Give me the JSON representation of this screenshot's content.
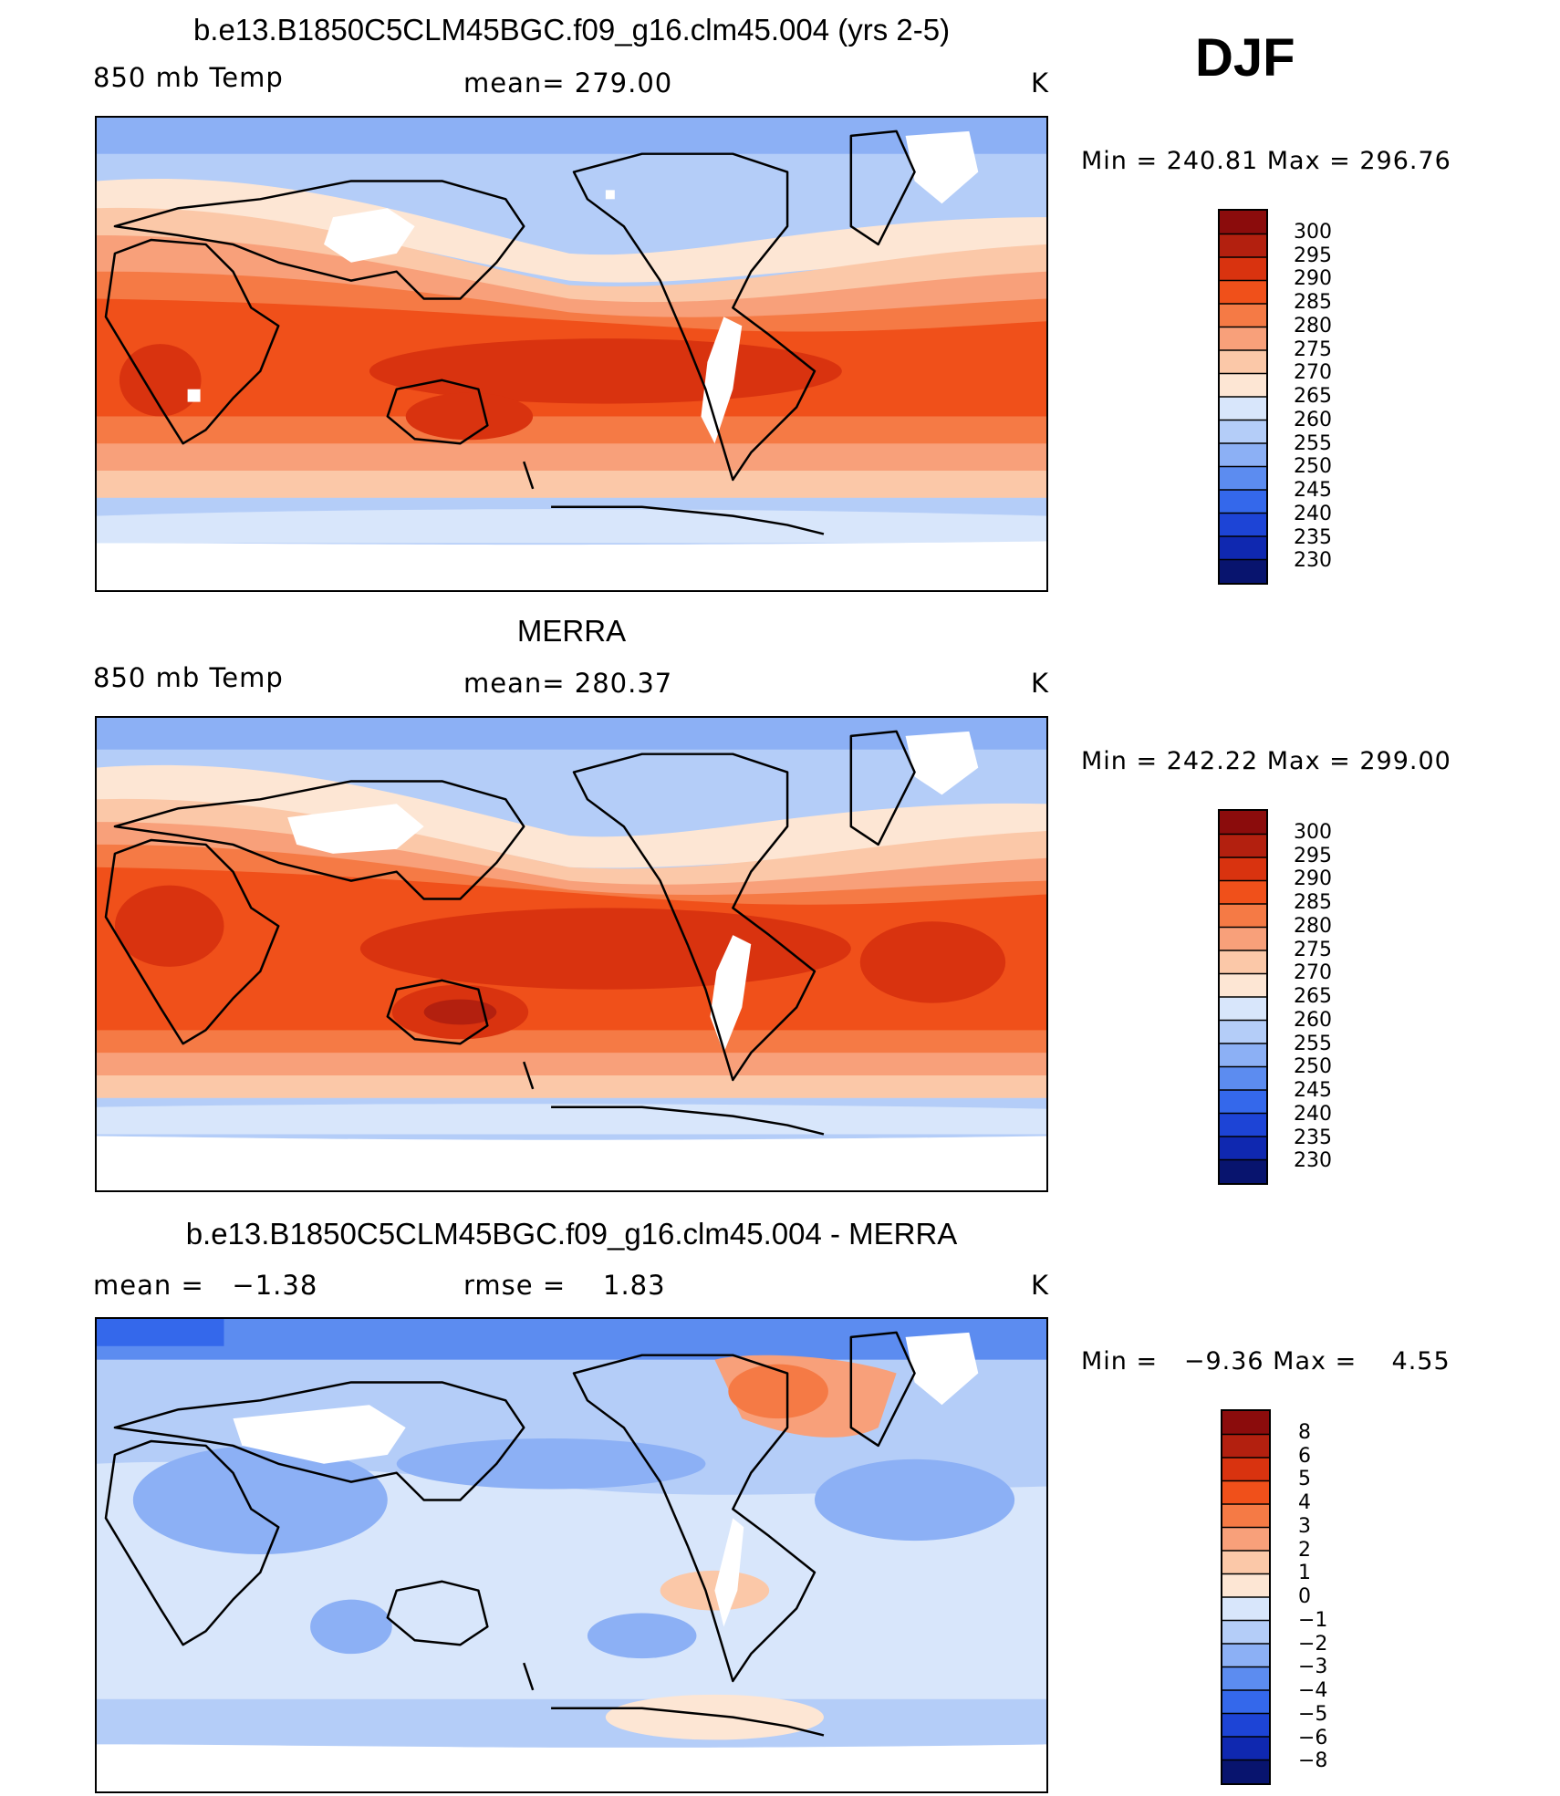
{
  "header": {
    "season": "DJF"
  },
  "panels": [
    {
      "title": "b.e13.B1850C5CLM45BGC.f09_g16.clm45.004 (yrs 2-5)",
      "left_label": "850 mb Temp",
      "center_label": "mean= 279.00",
      "units": "K",
      "minmax": "Min = 240.81 Max = 296.76",
      "colorbar_labels": [
        "300",
        "295",
        "290",
        "285",
        "280",
        "275",
        "270",
        "265",
        "260",
        "255",
        "250",
        "245",
        "240",
        "235",
        "230"
      ]
    },
    {
      "title": "MERRA",
      "left_label": "850 mb Temp",
      "center_label": "mean= 280.37",
      "units": "K",
      "minmax": "Min = 242.22 Max = 299.00",
      "colorbar_labels": [
        "300",
        "295",
        "290",
        "285",
        "280",
        "275",
        "270",
        "265",
        "260",
        "255",
        "250",
        "245",
        "240",
        "235",
        "230"
      ]
    },
    {
      "title": "b.e13.B1850C5CLM45BGC.f09_g16.clm45.004 - MERRA",
      "left_label": "mean =   −1.38",
      "center_label": "rmse =    1.83",
      "units": "K",
      "minmax": "Min =   −9.36 Max =    4.55",
      "colorbar_labels": [
        "8",
        "6",
        "5",
        "4",
        "3",
        "2",
        "1",
        "0",
        "−1",
        "−2",
        "−3",
        "−4",
        "−5",
        "−6",
        "−8"
      ]
    }
  ],
  "colors": {
    "temp_scale": [
      "#8b0c0c",
      "#b3200f",
      "#d9330f",
      "#f0501a",
      "#f57a45",
      "#f8a07a",
      "#fbc8a8",
      "#fde6d4",
      "#d8e6fb",
      "#b4cdf8",
      "#8cb0f5",
      "#5c8cf0",
      "#3468eb",
      "#1d44d6",
      "#0f28b0",
      "#08146e"
    ],
    "diff_scale": [
      "#8b0c0c",
      "#b3200f",
      "#d9330f",
      "#f0501a",
      "#f57a45",
      "#f8a07a",
      "#fbc8a8",
      "#fde6d4",
      "#d8e6fb",
      "#b4cdf8",
      "#8cb0f5",
      "#5c8cf0",
      "#3468eb",
      "#1d44d6",
      "#0f28b0",
      "#08146e"
    ]
  }
}
